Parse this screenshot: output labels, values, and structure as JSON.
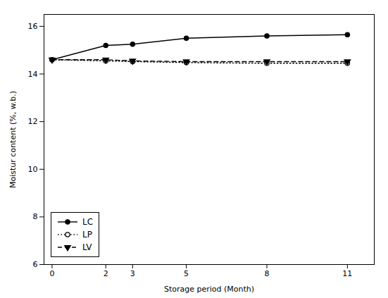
{
  "chart_data": {
    "type": "line",
    "xlabel": "Storage period (Month)",
    "ylabel": "Moistur content (%, w.b.)",
    "x": [
      0,
      2,
      3,
      5,
      8,
      11
    ],
    "series": [
      {
        "name": "LC",
        "color": "#000000",
        "values": [
          14.6,
          15.2,
          15.25,
          15.5,
          15.6,
          15.65
        ],
        "marker": "circle",
        "line_style": "solid"
      },
      {
        "name": "LP",
        "color": "#000000",
        "values": [
          14.6,
          14.55,
          14.52,
          14.48,
          14.45,
          14.45
        ],
        "marker": "open circle",
        "line_style": "dotted"
      },
      {
        "name": "LV",
        "color": "#000000",
        "values": [
          14.6,
          14.6,
          14.55,
          14.52,
          14.52,
          14.52
        ],
        "marker": "triangle-down",
        "line_style": "dashed"
      }
    ],
    "xlim": [
      -0.3,
      12
    ],
    "ylim": [
      6,
      16.5
    ],
    "xticks": [
      0,
      2,
      3,
      5,
      8,
      11
    ],
    "yticks": [
      6,
      8,
      10,
      12,
      14,
      16
    ],
    "legend": "lower left",
    "grid": false
  }
}
